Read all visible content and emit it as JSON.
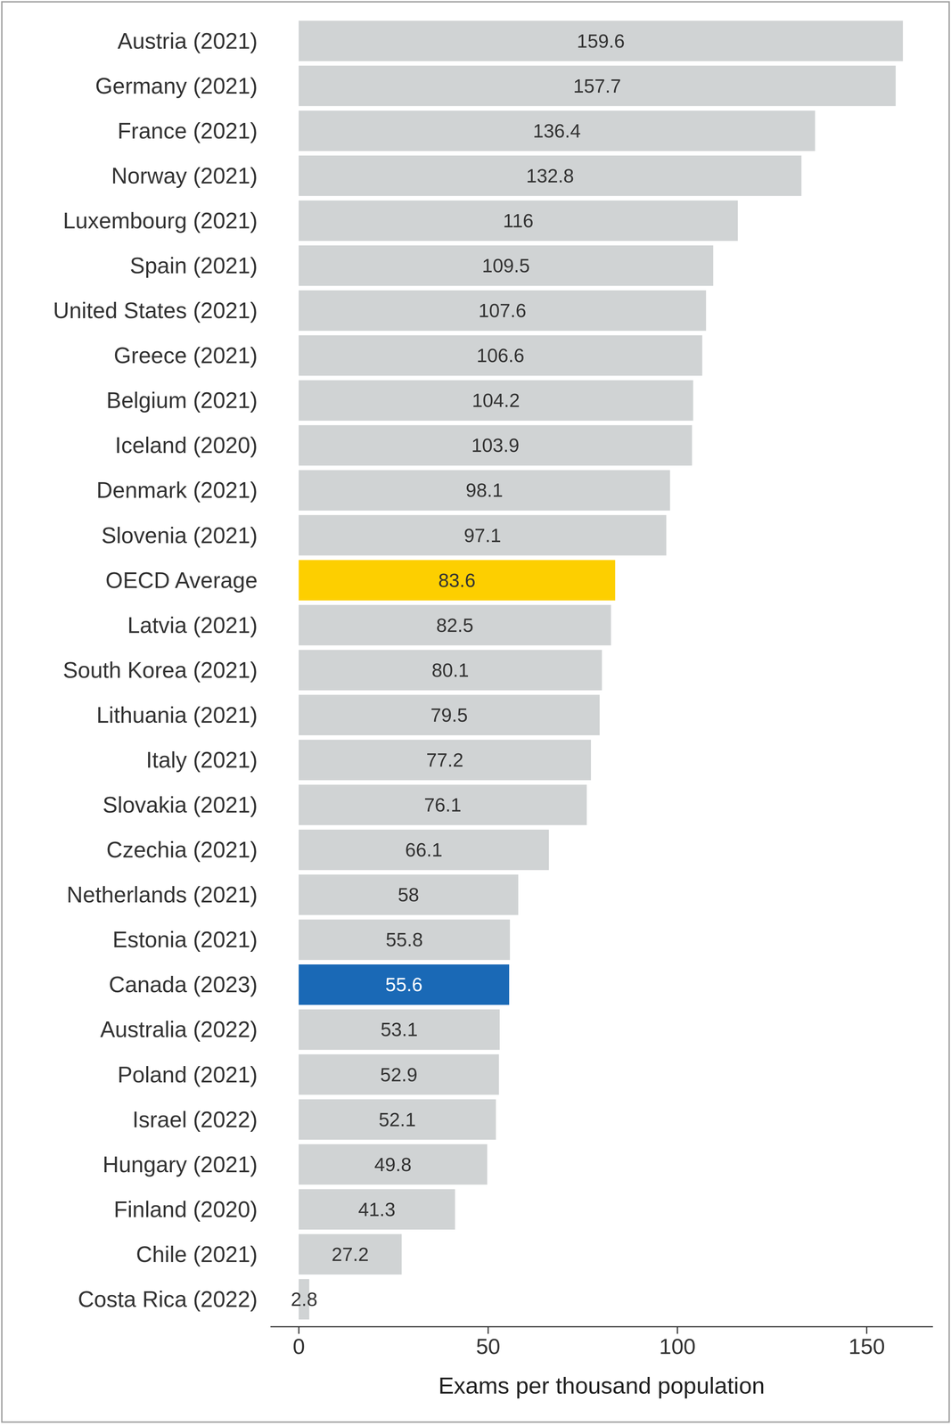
{
  "chart_data": {
    "type": "bar",
    "orientation": "horizontal",
    "categories": [
      "Austria (2021)",
      "Germany (2021)",
      "France (2021)",
      "Norway (2021)",
      "Luxembourg (2021)",
      "Spain (2021)",
      "United States (2021)",
      "Greece (2021)",
      "Belgium (2021)",
      "Iceland (2020)",
      "Denmark (2021)",
      "Slovenia (2021)",
      "OECD Average",
      "Latvia (2021)",
      "South Korea (2021)",
      "Lithuania (2021)",
      "Italy (2021)",
      "Slovakia (2021)",
      "Czechia (2021)",
      "Netherlands (2021)",
      "Estonia (2021)",
      "Canada (2023)",
      "Australia (2022)",
      "Poland (2021)",
      "Israel (2022)",
      "Hungary (2021)",
      "Finland (2020)",
      "Chile (2021)",
      "Costa Rica (2022)"
    ],
    "values": [
      159.6,
      157.7,
      136.4,
      132.8,
      116,
      109.5,
      107.6,
      106.6,
      104.2,
      103.9,
      98.1,
      97.1,
      83.6,
      82.5,
      80.1,
      79.5,
      77.2,
      76.1,
      66.1,
      58,
      55.8,
      55.6,
      53.1,
      52.9,
      52.1,
      49.8,
      41.3,
      27.2,
      2.8
    ],
    "colors": [
      "#d0d3d4",
      "#d0d3d4",
      "#d0d3d4",
      "#d0d3d4",
      "#d0d3d4",
      "#d0d3d4",
      "#d0d3d4",
      "#d0d3d4",
      "#d0d3d4",
      "#d0d3d4",
      "#d0d3d4",
      "#d0d3d4",
      "#fdcf00",
      "#d0d3d4",
      "#d0d3d4",
      "#d0d3d4",
      "#d0d3d4",
      "#d0d3d4",
      "#d0d3d4",
      "#d0d3d4",
      "#d0d3d4",
      "#1a69b6",
      "#d0d3d4",
      "#d0d3d4",
      "#d0d3d4",
      "#d0d3d4",
      "#d0d3d4",
      "#d0d3d4",
      "#d0d3d4"
    ],
    "xlabel": "Exams per thousand population",
    "xlim": [
      -7.5,
      167.5
    ],
    "xticks": [
      0,
      50,
      100,
      150
    ],
    "grid": false,
    "data_labels": true
  }
}
